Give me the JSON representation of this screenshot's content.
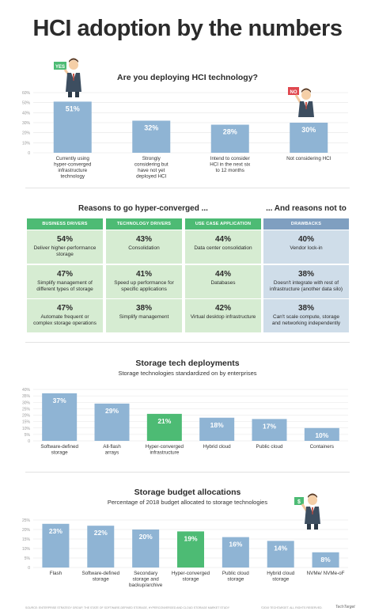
{
  "title": "HCI adoption by the numbers",
  "colors": {
    "bar": "#8fb4d4",
    "highlight": "#4dbb74",
    "green_head": "#4dbb74",
    "green_cell": "#d6ecd2",
    "blue_head": "#7f9fc0",
    "blue_cell": "#cfdde9",
    "grid": "#e5e5e5"
  },
  "icons": [
    "businessman-yes-sign-icon",
    "businessman-no-sign-icon",
    "businessman-dollar-sign-icon"
  ],
  "chart_data": [
    {
      "type": "bar",
      "title": "Are you deploying HCI technology?",
      "categories": [
        "Currently using hyper-converged infrastructure technology",
        "Strongly considering but have not yet deployed HCI",
        "Intend to consider HCI in the next six to 12 months",
        "Not considering HCI"
      ],
      "values": [
        51,
        32,
        28,
        30
      ],
      "value_labels": [
        "51%",
        "32%",
        "28%",
        "30%"
      ],
      "ylim": [
        0,
        60
      ],
      "yticks": [
        "0",
        "10%",
        "20%",
        "30%",
        "40%",
        "50%",
        "60%"
      ],
      "grid": true
    },
    {
      "type": "bar",
      "title": "Storage tech deployments",
      "subtitle": "Storage technologies standardized on by enterprises",
      "categories": [
        "Software-defined storage",
        "All-flash arrays",
        "Hyper-converged infrastructure",
        "Hybrid cloud",
        "Public cloud",
        "Containers"
      ],
      "values": [
        37,
        29,
        21,
        18,
        17,
        10
      ],
      "value_labels": [
        "37%",
        "29%",
        "21%",
        "18%",
        "17%",
        "10%"
      ],
      "highlight_index": 2,
      "ylim": [
        0,
        40
      ],
      "yticks": [
        "0",
        "5%",
        "10%",
        "15%",
        "20%",
        "25%",
        "30%",
        "35%",
        "40%"
      ],
      "grid": true
    },
    {
      "type": "bar",
      "title": "Storage budget allocations",
      "subtitle": "Percentage of 2018 budget allocated to storage technologies",
      "categories": [
        "Flash",
        "Software-defined storage",
        "Secondary storage and backup/archive",
        "Hyper-converged storage",
        "Public cloud storage",
        "Hybrid cloud storage",
        "NVMe/ NVMe-oF"
      ],
      "values": [
        23,
        22,
        20,
        19,
        16,
        14,
        8
      ],
      "value_labels": [
        "23%",
        "22%",
        "20%",
        "19%",
        "16%",
        "14%",
        "8%"
      ],
      "highlight_index": 3,
      "ylim": [
        0,
        25
      ],
      "yticks": [
        "0",
        "5%",
        "10%",
        "15%",
        "20%",
        "25%"
      ],
      "grid": true
    }
  ],
  "reasons": {
    "title": "Reasons to go hyper-converged ...",
    "not_title": "... And reasons not to",
    "columns": [
      {
        "header": "BUSINESS DRIVERS",
        "color": "green",
        "items": [
          {
            "pct": "54%",
            "label": "Deliver higher-performance storage"
          },
          {
            "pct": "47%",
            "label": "Simplify management of different types of storage"
          },
          {
            "pct": "47%",
            "label": "Automate frequent or complex storage operations"
          }
        ]
      },
      {
        "header": "TECHNOLOGY DRIVERS",
        "color": "green",
        "items": [
          {
            "pct": "43%",
            "label": "Consolidation"
          },
          {
            "pct": "41%",
            "label": "Speed up performance for specific applications"
          },
          {
            "pct": "38%",
            "label": "Simplify management"
          }
        ]
      },
      {
        "header": "USE CASE APPLICATION DRIVERS",
        "color": "green",
        "items": [
          {
            "pct": "44%",
            "label": "Data center consolidation"
          },
          {
            "pct": "44%",
            "label": "Databases"
          },
          {
            "pct": "42%",
            "label": "Virtual desktop infrastructure"
          }
        ]
      },
      {
        "header": "DRAWBACKS",
        "color": "blue",
        "items": [
          {
            "pct": "40%",
            "label": "Vendor lock-in"
          },
          {
            "pct": "38%",
            "label": "Doesn't integrate with rest of infrastructure (another data silo)"
          },
          {
            "pct": "38%",
            "label": "Can't scale compute, storage and networking independently"
          }
        ]
      }
    ]
  },
  "signs": {
    "yes": "YES",
    "no": "NO",
    "dollar": "$"
  },
  "footer": {
    "source": "SOURCE: ENTERPRISE STRATEGY GROUP, THE STATE OF SOFTWARE-DEFINED STORAGE, HYPERCONVERGED AND CLOUD STORAGE MARKET STUDY",
    "rights": "©2019 TECHTARGET. ALL RIGHTS RESERVED.",
    "brand": "TechTarget"
  }
}
